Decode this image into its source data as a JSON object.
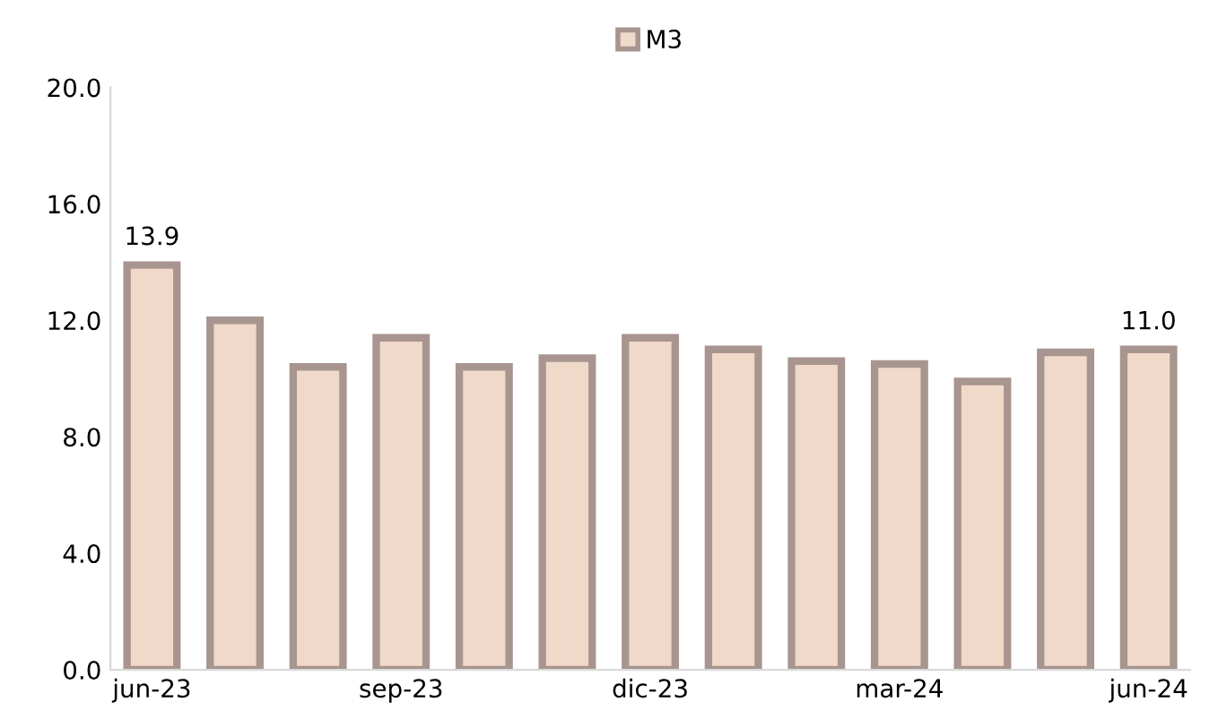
{
  "chart_data": {
    "type": "bar",
    "categories": [
      "jun-23",
      null,
      null,
      "sep-23",
      null,
      null,
      "dic-23",
      null,
      null,
      "mar-24",
      null,
      null,
      "jun-24"
    ],
    "series": [
      {
        "name": "M3",
        "color": "#f0d9c8",
        "values": [
          13.9,
          12.0,
          10.4,
          11.4,
          10.4,
          10.7,
          11.4,
          11.0,
          10.6,
          10.5,
          9.9,
          10.9,
          11.0
        ],
        "value_labels": [
          "13.9",
          null,
          null,
          null,
          null,
          null,
          null,
          null,
          null,
          null,
          null,
          null,
          "11.0"
        ]
      }
    ],
    "ylim": [
      0,
      20
    ],
    "yticks": [
      {
        "value": 0,
        "label": "0.0"
      },
      {
        "value": 4,
        "label": "4.0"
      },
      {
        "value": 8,
        "label": "8.0"
      },
      {
        "value": 12,
        "label": "12.0"
      },
      {
        "value": 16,
        "label": "16.0"
      },
      {
        "value": 20,
        "label": "20.0"
      }
    ],
    "grid": false,
    "legend": "top"
  }
}
